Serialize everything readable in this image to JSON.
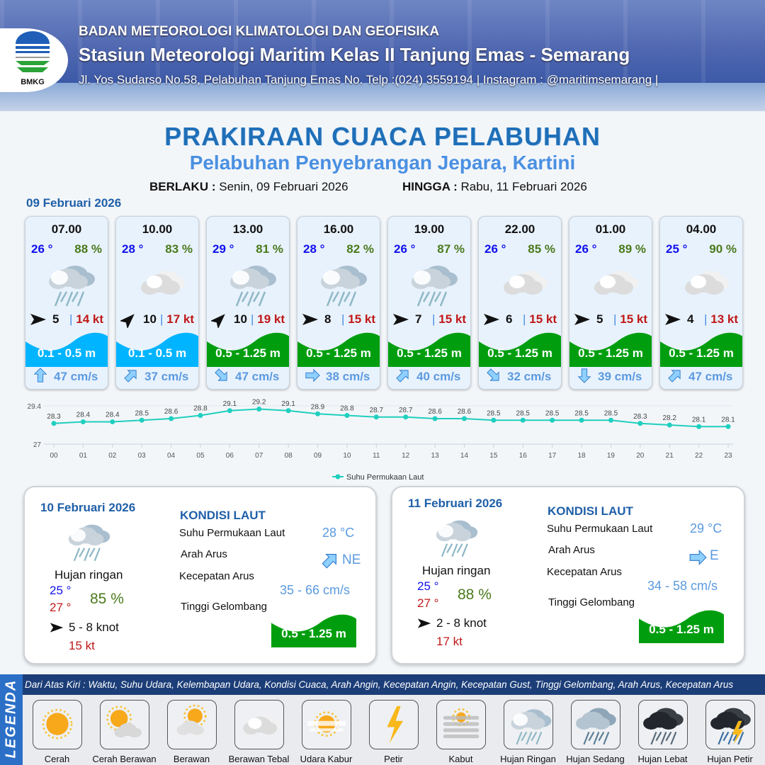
{
  "header": {
    "org": "BADAN METEOROLOGI KLIMATOLOGI DAN GEOFISIKA",
    "station": "Stasiun Meteorologi Maritim Kelas II Tanjung Emas - Semarang",
    "address": "Jl. Yos Sudarso No.58, Pelabuhan Tanjung Emas No. Telp :(024) 3559194 | Instagram : @maritimsemarang |",
    "logo_text": "BMKG"
  },
  "title": "PRAKIRAAN CUACA PELABUHAN",
  "subtitle": "Pelabuhan Penyebrangan Jepara, Kartini",
  "valid": {
    "from_label": "BERLAKU :",
    "from": "Senin, 09 Februari 2026",
    "to_label": "HINGGA :",
    "to": "Rabu, 11 Februari 2026"
  },
  "day0": "09 Februari 2026",
  "colors": {
    "wave_low": "#00b4ff",
    "wave_mid": "#009e0f",
    "temp": "#1010ee",
    "humidity": "#4a7a1c",
    "gust": "#c01818",
    "current": "#5b9ae0",
    "line": "#1fcfbf"
  },
  "forecast": [
    {
      "time": "07.00",
      "temp": "26 °",
      "hum": "88 %",
      "icon": "rain-cloud",
      "wind_dir": "E",
      "wind": "5",
      "gust": "14 kt",
      "wave": "0.1 - 0.5 m",
      "wave_level": "low",
      "cur_dir": "N",
      "cur": "47 cm/s"
    },
    {
      "time": "10.00",
      "temp": "28 °",
      "hum": "83 %",
      "icon": "cloudy",
      "wind_dir": "NE",
      "wind": "10",
      "gust": "17 kt",
      "wave": "0.1 - 0.5 m",
      "wave_level": "low",
      "cur_dir": "NE",
      "cur": "37 cm/s"
    },
    {
      "time": "13.00",
      "temp": "29 °",
      "hum": "81 %",
      "icon": "rain-cloud",
      "wind_dir": "NE",
      "wind": "10",
      "gust": "19 kt",
      "wave": "0.5 - 1.25 m",
      "wave_level": "mid",
      "cur_dir": "SE",
      "cur": "47 cm/s"
    },
    {
      "time": "16.00",
      "temp": "28 °",
      "hum": "82 %",
      "icon": "rain-cloud",
      "wind_dir": "E",
      "wind": "8",
      "gust": "15 kt",
      "wave": "0.5 - 1.25 m",
      "wave_level": "mid",
      "cur_dir": "E",
      "cur": "38 cm/s"
    },
    {
      "time": "19.00",
      "temp": "26 °",
      "hum": "87 %",
      "icon": "rain-cloud",
      "wind_dir": "E",
      "wind": "7",
      "gust": "15 kt",
      "wave": "0.5 - 1.25 m",
      "wave_level": "mid",
      "cur_dir": "NE",
      "cur": "40 cm/s"
    },
    {
      "time": "22.00",
      "temp": "26 °",
      "hum": "85 %",
      "icon": "cloudy",
      "wind_dir": "E",
      "wind": "6",
      "gust": "15 kt",
      "wave": "0.5 - 1.25 m",
      "wave_level": "mid",
      "cur_dir": "SE",
      "cur": "32 cm/s"
    },
    {
      "time": "01.00",
      "temp": "26 °",
      "hum": "89 %",
      "icon": "cloudy",
      "wind_dir": "E",
      "wind": "5",
      "gust": "15 kt",
      "wave": "0.5 - 1.25 m",
      "wave_level": "mid",
      "cur_dir": "S",
      "cur": "39 cm/s"
    },
    {
      "time": "04.00",
      "temp": "25 °",
      "hum": "90 %",
      "icon": "cloudy",
      "wind_dir": "E",
      "wind": "4",
      "gust": "13 kt",
      "wave": "0.5 - 1.25 m",
      "wave_level": "mid",
      "cur_dir": "NE",
      "cur": "47 cm/s"
    }
  ],
  "chart_data": {
    "type": "line",
    "x": [
      "00",
      "01",
      "02",
      "03",
      "04",
      "05",
      "06",
      "07",
      "08",
      "09",
      "10",
      "11",
      "12",
      "13",
      "14",
      "15",
      "16",
      "17",
      "18",
      "19",
      "20",
      "21",
      "22",
      "23"
    ],
    "series": [
      {
        "name": "Suhu Permukaan Laut",
        "values": [
          28.3,
          28.4,
          28.4,
          28.5,
          28.6,
          28.8,
          29.1,
          29.2,
          29.1,
          28.9,
          28.8,
          28.7,
          28.7,
          28.6,
          28.6,
          28.5,
          28.5,
          28.5,
          28.5,
          28.5,
          28.3,
          28.2,
          28.1,
          28.1
        ]
      }
    ],
    "yticks": [
      "29.4",
      "27"
    ],
    "ylim": [
      27,
      29.4
    ],
    "grid": true,
    "legend": "bottom",
    "data_labels": true
  },
  "days": [
    {
      "date": "10 Februari 2026",
      "icon": "rain-cloud",
      "weather": "Hujan ringan",
      "tmin": "25 °",
      "tmax": "27 °",
      "hum": "85 %",
      "wind": "5 - 8 knot",
      "gust": "15 kt",
      "kondisi": "KONDISI LAUT",
      "sst_label": "Suhu Permukaan Laut",
      "sst": "28 °C",
      "dir_label": "Arah Arus",
      "dir": "NE",
      "spd_label": "Kecepatan Arus",
      "spd": "35 - 66 cm/s",
      "wave_label": "Tinggi Gelombang",
      "wave": "0.5 - 1.25 m"
    },
    {
      "date": "11 Februari 2026",
      "icon": "rain-cloud",
      "weather": "Hujan ringan",
      "tmin": "25 °",
      "tmax": "27 °",
      "hum": "88 %",
      "wind": "2 - 8 knot",
      "gust": "17 kt",
      "kondisi": "KONDISI LAUT",
      "sst_label": "Suhu Permukaan Laut",
      "sst": "29 °C",
      "dir_label": "Arah Arus",
      "dir": "E",
      "spd_label": "Kecepatan Arus",
      "spd": "34 - 58 cm/s",
      "wave_label": "Tinggi Gelombang",
      "wave": "0.5 - 1.25 m"
    }
  ],
  "legend": {
    "title": "LEGENDA",
    "description": "Dari Atas Kiri : Waktu, Suhu Udara, Kelembapan Udara, Kondisi Cuaca, Arah Angin, Kecepatan Angin, Kecepatan Gust, Tinggi Gelombang, Arah Arus, Kecepatan Arus",
    "items": [
      {
        "label": "Cerah",
        "icon": "sun"
      },
      {
        "label": "Cerah Berawan",
        "icon": "sun-cloud"
      },
      {
        "label": "Berawan",
        "icon": "cloud-sun"
      },
      {
        "label": "Berawan Tebal",
        "icon": "cloudy"
      },
      {
        "label": "Udara Kabur",
        "icon": "haze"
      },
      {
        "label": "Petir",
        "icon": "lightning"
      },
      {
        "label": "Kabut",
        "icon": "fog"
      },
      {
        "label": "Hujan Ringan",
        "icon": "rain-cloud"
      },
      {
        "label": "Hujan Sedang",
        "icon": "moderate-rain"
      },
      {
        "label": "Hujan Lebat",
        "icon": "heavy-rain"
      },
      {
        "label": "Hujan Petir",
        "icon": "thunderstorm"
      }
    ]
  }
}
